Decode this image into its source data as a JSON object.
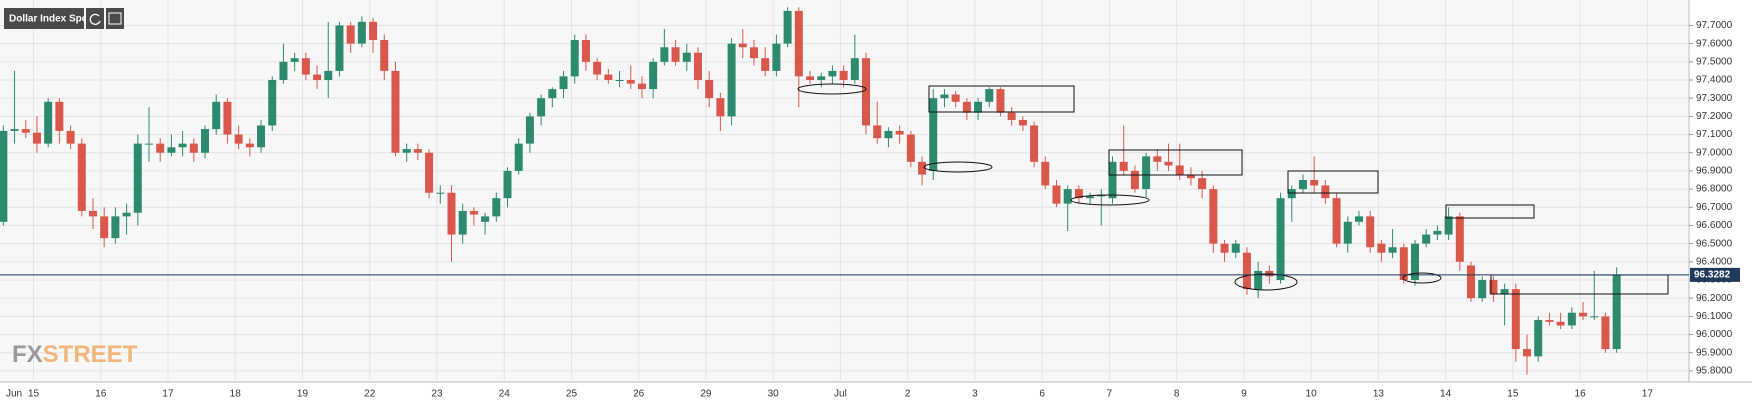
{
  "chart_data": {
    "type": "candlestick",
    "title": "Dollar Index Spot",
    "x_labels": [
      "Jun",
      "15",
      "16",
      "17",
      "18",
      "19",
      "22",
      "23",
      "24",
      "25",
      "26",
      "29",
      "30",
      "Jul",
      "2",
      "3",
      "6",
      "7",
      "8",
      "9",
      "10",
      "13",
      "14",
      "15",
      "16",
      "17"
    ],
    "ylim": [
      95.75,
      97.84
    ],
    "yticks": [
      {
        "value": 95.8,
        "label": "95.8000"
      },
      {
        "value": 95.9,
        "label": "95.9000"
      },
      {
        "value": 96.0,
        "label": "96.0000"
      },
      {
        "value": 96.1,
        "label": "96.1000"
      },
      {
        "value": 96.2,
        "label": "96.2000"
      },
      {
        "value": 96.3,
        "label": "96.3000"
      },
      {
        "value": 96.4,
        "label": "96.4000"
      },
      {
        "value": 96.5,
        "label": "96.5000"
      },
      {
        "value": 96.6,
        "label": "96.6000"
      },
      {
        "value": 96.7,
        "label": "96.7000"
      },
      {
        "value": 96.8,
        "label": "96.8000"
      },
      {
        "value": 96.9,
        "label": "96.9000"
      },
      {
        "value": 97.0,
        "label": "97.0000"
      },
      {
        "value": 97.1,
        "label": "97.1000"
      },
      {
        "value": 97.2,
        "label": "97.2000"
      },
      {
        "value": 97.3,
        "label": "97.3000"
      },
      {
        "value": 97.4,
        "label": "97.4000"
      },
      {
        "value": 97.5,
        "label": "97.5000"
      },
      {
        "value": 97.6,
        "label": "97.6000"
      },
      {
        "value": 97.7,
        "label": "97.7000"
      }
    ],
    "grid": true,
    "up_color": "#2e8a6e",
    "down_color": "#d9584b",
    "last_price": 96.3282,
    "last_price_color": "#1f3a5a",
    "candles": [
      [
        96.62,
        97.15,
        96.6,
        97.12
      ],
      [
        97.12,
        97.45,
        97.05,
        97.13
      ],
      [
        97.13,
        97.18,
        97.08,
        97.11
      ],
      [
        97.11,
        97.2,
        97.0,
        97.05
      ],
      [
        97.05,
        97.3,
        97.03,
        97.28
      ],
      [
        97.28,
        97.3,
        97.05,
        97.12
      ],
      [
        97.12,
        97.15,
        97.02,
        97.05
      ],
      [
        97.05,
        97.08,
        96.65,
        96.68
      ],
      [
        96.68,
        96.75,
        96.58,
        96.65
      ],
      [
        96.65,
        96.7,
        96.48,
        96.53
      ],
      [
        96.53,
        96.7,
        96.5,
        96.65
      ],
      [
        96.65,
        96.72,
        96.55,
        96.67
      ],
      [
        96.67,
        97.1,
        96.6,
        97.05
      ],
      [
        97.05,
        97.25,
        96.95,
        97.05
      ],
      [
        97.05,
        97.08,
        96.95,
        97.0
      ],
      [
        97.0,
        97.1,
        96.98,
        97.03
      ],
      [
        97.03,
        97.12,
        96.98,
        97.05
      ],
      [
        97.05,
        97.08,
        96.95,
        97.0
      ],
      [
        97.0,
        97.15,
        96.97,
        97.13
      ],
      [
        97.13,
        97.32,
        97.1,
        97.28
      ],
      [
        97.28,
        97.3,
        97.05,
        97.1
      ],
      [
        97.1,
        97.15,
        97.02,
        97.05
      ],
      [
        97.05,
        97.08,
        96.98,
        97.03
      ],
      [
        97.03,
        97.18,
        97.0,
        97.15
      ],
      [
        97.15,
        97.42,
        97.12,
        97.4
      ],
      [
        97.4,
        97.6,
        97.38,
        97.5
      ],
      [
        97.5,
        97.55,
        97.45,
        97.52
      ],
      [
        97.52,
        97.55,
        97.4,
        97.43
      ],
      [
        97.43,
        97.48,
        97.35,
        97.4
      ],
      [
        97.4,
        97.72,
        97.3,
        97.45
      ],
      [
        97.45,
        97.72,
        97.42,
        97.7
      ],
      [
        97.7,
        97.72,
        97.55,
        97.6
      ],
      [
        97.6,
        97.75,
        97.58,
        97.72
      ],
      [
        97.72,
        97.74,
        97.55,
        97.62
      ],
      [
        97.62,
        97.65,
        97.4,
        97.45
      ],
      [
        97.45,
        97.5,
        96.98,
        97.0
      ],
      [
        97.0,
        97.05,
        96.95,
        97.02
      ],
      [
        97.02,
        97.05,
        96.96,
        97.0
      ],
      [
        97.0,
        97.02,
        96.75,
        96.78
      ],
      [
        96.78,
        96.82,
        96.72,
        96.78
      ],
      [
        96.78,
        96.82,
        96.4,
        96.55
      ],
      [
        96.55,
        96.72,
        96.5,
        96.68
      ],
      [
        96.68,
        96.7,
        96.6,
        96.66
      ],
      [
        96.62,
        96.67,
        96.55,
        96.65
      ],
      [
        96.65,
        96.78,
        96.62,
        96.75
      ],
      [
        96.75,
        96.92,
        96.7,
        96.9
      ],
      [
        96.9,
        97.08,
        96.88,
        97.05
      ],
      [
        97.05,
        97.22,
        97.0,
        97.2
      ],
      [
        97.2,
        97.32,
        97.15,
        97.3
      ],
      [
        97.3,
        97.36,
        97.25,
        97.35
      ],
      [
        97.35,
        97.45,
        97.3,
        97.42
      ],
      [
        97.42,
        97.65,
        97.38,
        97.62
      ],
      [
        97.62,
        97.65,
        97.45,
        97.5
      ],
      [
        97.5,
        97.52,
        97.4,
        97.43
      ],
      [
        97.43,
        97.46,
        97.38,
        97.4
      ],
      [
        97.4,
        97.45,
        97.36,
        97.4
      ],
      [
        97.4,
        97.48,
        97.35,
        97.38
      ],
      [
        97.38,
        97.42,
        97.3,
        97.35
      ],
      [
        97.35,
        97.52,
        97.3,
        97.5
      ],
      [
        97.5,
        97.68,
        97.48,
        97.58
      ],
      [
        97.58,
        97.62,
        97.48,
        97.5
      ],
      [
        97.5,
        97.6,
        97.45,
        97.55
      ],
      [
        97.55,
        97.58,
        97.35,
        97.4
      ],
      [
        97.4,
        97.45,
        97.25,
        97.3
      ],
      [
        97.3,
        97.33,
        97.12,
        97.2
      ],
      [
        97.2,
        97.63,
        97.15,
        97.6
      ],
      [
        97.6,
        97.68,
        97.52,
        97.58
      ],
      [
        97.58,
        97.62,
        97.48,
        97.52
      ],
      [
        97.52,
        97.58,
        97.42,
        97.45
      ],
      [
        97.45,
        97.65,
        97.42,
        97.6
      ],
      [
        97.6,
        97.8,
        97.58,
        97.78
      ],
      [
        97.78,
        97.8,
        97.25,
        97.42
      ],
      [
        97.42,
        97.45,
        97.38,
        97.4
      ],
      [
        97.4,
        97.44,
        97.36,
        97.42
      ],
      [
        97.42,
        97.48,
        97.38,
        97.45
      ],
      [
        97.45,
        97.48,
        97.36,
        97.4
      ],
      [
        97.4,
        97.65,
        97.38,
        97.52
      ],
      [
        97.52,
        97.55,
        97.1,
        97.15
      ],
      [
        97.15,
        97.28,
        97.05,
        97.08
      ],
      [
        97.08,
        97.14,
        97.03,
        97.12
      ],
      [
        97.12,
        97.15,
        97.05,
        97.1
      ],
      [
        97.1,
        97.12,
        96.92,
        96.95
      ],
      [
        96.95,
        96.98,
        96.82,
        96.88
      ],
      [
        96.9,
        97.35,
        96.85,
        97.3
      ],
      [
        97.3,
        97.35,
        97.25,
        97.32
      ],
      [
        97.32,
        97.34,
        97.25,
        97.28
      ],
      [
        97.28,
        97.3,
        97.18,
        97.22
      ],
      [
        97.22,
        97.3,
        97.18,
        97.28
      ],
      [
        97.28,
        97.36,
        97.25,
        97.35
      ],
      [
        97.35,
        97.36,
        97.2,
        97.22
      ],
      [
        97.22,
        97.25,
        97.15,
        97.18
      ],
      [
        97.18,
        97.2,
        97.12,
        97.15
      ],
      [
        97.15,
        97.17,
        96.92,
        96.95
      ],
      [
        96.95,
        96.98,
        96.8,
        96.82
      ],
      [
        96.82,
        96.85,
        96.7,
        96.72
      ],
      [
        96.72,
        96.82,
        96.57,
        96.8
      ],
      [
        96.8,
        96.82,
        96.72,
        96.75
      ],
      [
        96.75,
        96.78,
        96.72,
        96.76
      ],
      [
        96.76,
        96.8,
        96.6,
        96.77
      ],
      [
        96.75,
        96.98,
        96.72,
        96.95
      ],
      [
        96.95,
        97.15,
        96.88,
        96.9
      ],
      [
        96.9,
        96.93,
        96.78,
        96.8
      ],
      [
        96.8,
        97.0,
        96.75,
        96.98
      ],
      [
        96.98,
        97.02,
        96.9,
        96.95
      ],
      [
        96.95,
        97.05,
        96.9,
        96.93
      ],
      [
        96.93,
        97.05,
        96.85,
        96.88
      ],
      [
        96.88,
        96.92,
        96.82,
        96.86
      ],
      [
        96.86,
        96.9,
        96.75,
        96.8
      ],
      [
        96.8,
        96.82,
        96.45,
        96.5
      ],
      [
        96.5,
        96.52,
        96.4,
        96.45
      ],
      [
        96.45,
        96.52,
        96.42,
        96.5
      ],
      [
        96.45,
        96.48,
        96.22,
        96.25
      ],
      [
        96.25,
        96.4,
        96.2,
        96.35
      ],
      [
        96.35,
        96.38,
        96.28,
        96.32
      ],
      [
        96.3,
        96.78,
        96.28,
        96.75
      ],
      [
        96.75,
        96.82,
        96.62,
        96.8
      ],
      [
        96.8,
        96.88,
        96.78,
        96.85
      ],
      [
        96.85,
        96.98,
        96.78,
        96.82
      ],
      [
        96.82,
        96.85,
        96.72,
        96.75
      ],
      [
        96.75,
        96.78,
        96.48,
        96.5
      ],
      [
        96.5,
        96.65,
        96.45,
        96.62
      ],
      [
        96.62,
        96.68,
        96.6,
        96.65
      ],
      [
        96.65,
        96.68,
        96.45,
        96.48
      ],
      [
        96.5,
        96.52,
        96.4,
        96.45
      ],
      [
        96.45,
        96.58,
        96.42,
        96.48
      ],
      [
        96.48,
        96.5,
        96.28,
        96.3
      ],
      [
        96.3,
        96.52,
        96.27,
        96.5
      ],
      [
        96.5,
        96.58,
        96.48,
        96.55
      ],
      [
        96.55,
        96.6,
        96.52,
        96.57
      ],
      [
        96.55,
        96.7,
        96.52,
        96.65
      ],
      [
        96.65,
        96.67,
        96.35,
        96.4
      ],
      [
        96.38,
        96.4,
        96.18,
        96.2
      ],
      [
        96.2,
        96.32,
        96.18,
        96.3
      ],
      [
        96.3,
        96.32,
        96.18,
        96.22
      ],
      [
        96.22,
        96.28,
        96.05,
        96.25
      ],
      [
        96.25,
        96.28,
        95.85,
        95.92
      ],
      [
        95.92,
        96.0,
        95.78,
        95.88
      ],
      [
        95.88,
        96.1,
        95.85,
        96.08
      ],
      [
        96.08,
        96.12,
        96.05,
        96.07
      ],
      [
        96.07,
        96.12,
        96.03,
        96.05
      ],
      [
        96.05,
        96.15,
        96.03,
        96.12
      ],
      [
        96.12,
        96.18,
        96.08,
        96.1
      ],
      [
        96.1,
        96.35,
        96.08,
        96.1
      ],
      [
        96.1,
        96.12,
        95.9,
        95.92
      ],
      [
        95.92,
        96.37,
        95.9,
        96.33
      ]
    ]
  },
  "logo": [
    "FX",
    "STREET"
  ]
}
